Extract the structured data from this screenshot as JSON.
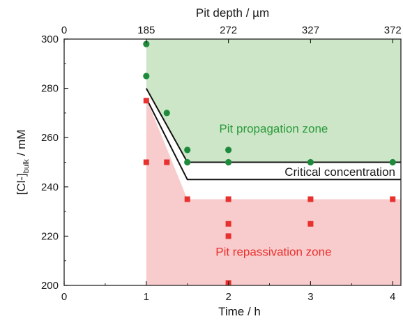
{
  "chart_data": {
    "type": "scatter",
    "xlabel": "Time / h",
    "ylabel_main": "[Cl-]",
    "ylabel_sub": "bulk",
    "ylabel_unit": " / mM",
    "top_xlabel": "Pit depth / µm",
    "xlim": [
      0,
      4.1
    ],
    "ylim": [
      200,
      300
    ],
    "x_ticks": [
      0,
      1,
      2,
      3,
      4
    ],
    "y_ticks": [
      200,
      220,
      240,
      260,
      280,
      300
    ],
    "top_ticks": [
      {
        "x": 0,
        "label": "0"
      },
      {
        "x": 1,
        "label": "185"
      },
      {
        "x": 2,
        "label": "272"
      },
      {
        "x": 3,
        "label": "327"
      },
      {
        "x": 4,
        "label": "372"
      }
    ],
    "series": [
      {
        "marker": "circle",
        "color": "#1e8a3c",
        "points": [
          [
            1,
            298
          ],
          [
            1,
            285
          ],
          [
            1.25,
            270
          ],
          [
            1.5,
            255
          ],
          [
            1.5,
            250
          ],
          [
            2,
            255
          ],
          [
            2,
            250
          ],
          [
            3,
            250
          ],
          [
            4,
            250
          ]
        ]
      },
      {
        "marker": "square",
        "color": "#e8302e",
        "points": [
          [
            1,
            275
          ],
          [
            1,
            250
          ],
          [
            1.25,
            250
          ],
          [
            1.5,
            235
          ],
          [
            2,
            235
          ],
          [
            2,
            225
          ],
          [
            2,
            220
          ],
          [
            2,
            201
          ],
          [
            3,
            235
          ],
          [
            3,
            225
          ],
          [
            4,
            235
          ]
        ]
      }
    ],
    "critical_line": {
      "label": "Critical concentration",
      "upper": [
        [
          1,
          280
        ],
        [
          1.5,
          250
        ],
        [
          4.1,
          250
        ]
      ],
      "lower": [
        [
          1,
          276
        ],
        [
          1.5,
          243
        ],
        [
          4.1,
          243
        ]
      ]
    },
    "zones": [
      {
        "label": "Pit propagation zone",
        "fill": "#cde6c7",
        "text_color": "#2a9a3c",
        "polygon": [
          [
            1,
            300
          ],
          [
            4.1,
            300
          ],
          [
            4.1,
            250
          ],
          [
            1.5,
            250
          ],
          [
            1,
            280
          ]
        ],
        "label_at": [
          2.55,
          262
        ]
      },
      {
        "label": "Pit repassivation zone",
        "fill": "#f8cccc",
        "text_color": "#e8302e",
        "polygon": [
          [
            1,
            200
          ],
          [
            4.1,
            200
          ],
          [
            4.1,
            235
          ],
          [
            1.5,
            235
          ],
          [
            1,
            276
          ]
        ],
        "label_at": [
          2.55,
          212
        ]
      }
    ]
  }
}
